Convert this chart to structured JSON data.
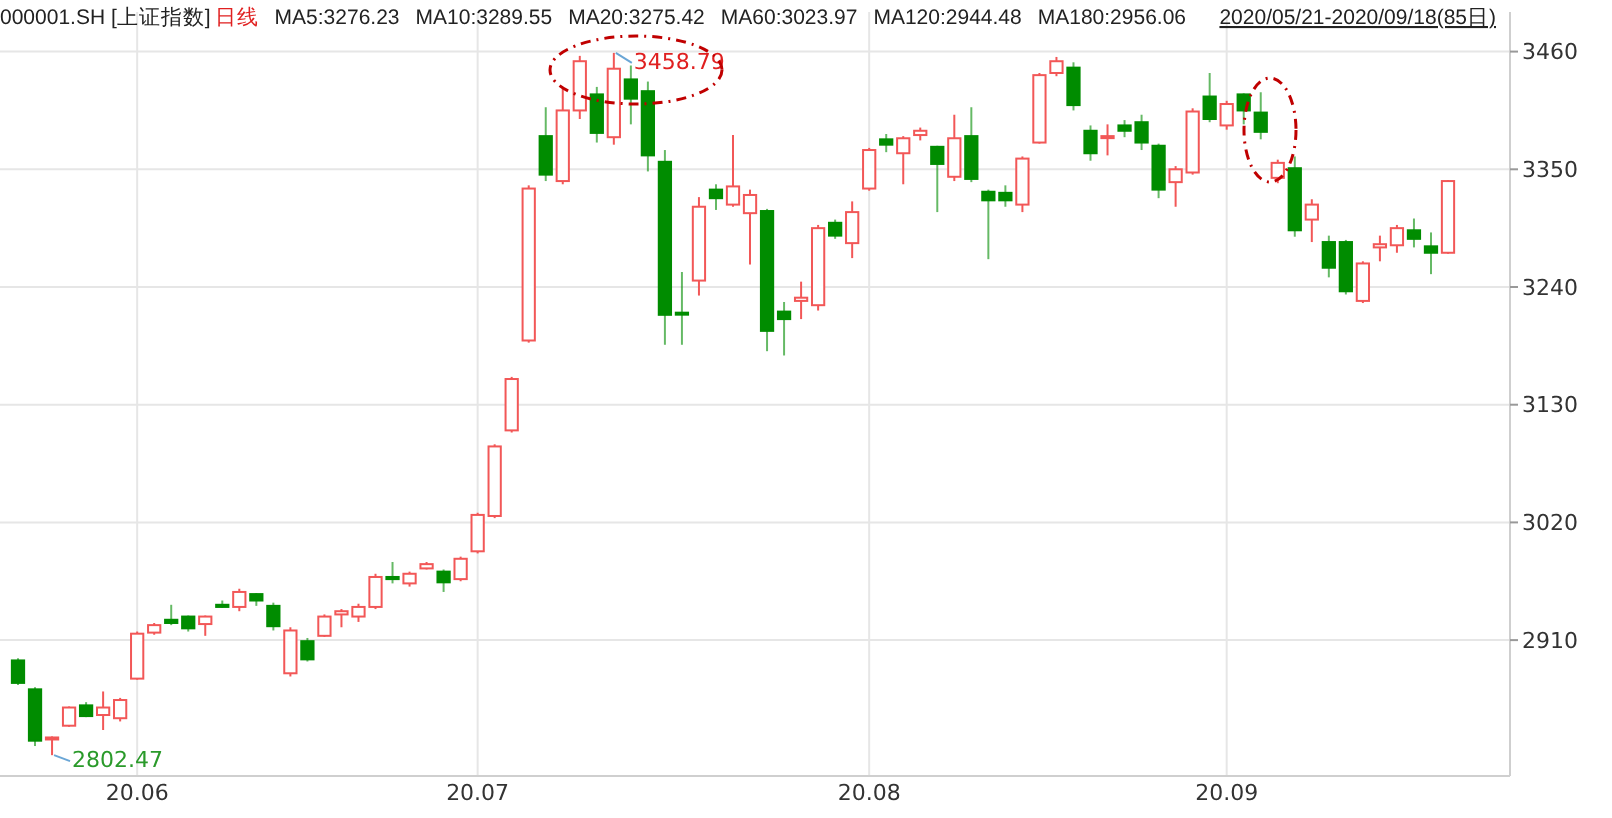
{
  "chart_data": {
    "type": "candlestick",
    "title": "000001.SH [上证指数]",
    "annotations": [
      "日线",
      "MA5:3276.23",
      "MA10:3289.55",
      "MA20:3275.42",
      "MA60:3023.97",
      "MA120:2944.48",
      "MA180:2956.06",
      "2020/05/21-2020/09/18(85日)",
      "3458.79",
      "2802.47"
    ],
    "categories": [
      null,
      null,
      null,
      null,
      null,
      null,
      null,
      "20.06",
      null,
      null,
      null,
      null,
      null,
      null,
      null,
      null,
      null,
      null,
      null,
      null,
      null,
      null,
      null,
      null,
      null,
      null,
      null,
      "20.07",
      null,
      null,
      null,
      null,
      null,
      null,
      null,
      null,
      null,
      null,
      null,
      null,
      null,
      null,
      null,
      null,
      null,
      null,
      null,
      null,
      null,
      null,
      "20.08",
      null,
      null,
      null,
      null,
      null,
      null,
      null,
      null,
      null,
      null,
      null,
      null,
      null,
      null,
      null,
      null,
      null,
      null,
      null,
      null,
      "20.09",
      null,
      null,
      null,
      null,
      null,
      null,
      null,
      null,
      null,
      null,
      null,
      null,
      null
    ],
    "ohlc": [
      [
        2891,
        2893,
        2868,
        2870
      ],
      [
        2864,
        2866,
        2811,
        2816
      ],
      [
        2818,
        2820,
        2802.47,
        2819
      ],
      [
        2830,
        2848,
        2829,
        2847
      ],
      [
        2849,
        2852,
        2838,
        2839
      ],
      [
        2840,
        2862,
        2826,
        2847
      ],
      [
        2837,
        2856,
        2834,
        2854
      ],
      [
        2874,
        2918,
        2873,
        2916
      ],
      [
        2917,
        2926,
        2915,
        2924
      ],
      [
        2929,
        2943,
        2924,
        2926
      ],
      [
        2932,
        2933,
        2918,
        2921
      ],
      [
        2925,
        2933,
        2914,
        2932
      ],
      [
        2943,
        2947,
        2940,
        2941
      ],
      [
        2941,
        2958,
        2937,
        2955
      ],
      [
        2953,
        2954,
        2942,
        2947
      ],
      [
        2942,
        2945,
        2919,
        2923
      ],
      [
        2879,
        2922,
        2876,
        2919
      ],
      [
        2909,
        2912,
        2890,
        2892
      ],
      [
        2914,
        2934,
        2913,
        2932
      ],
      [
        2934,
        2939,
        2922,
        2937
      ],
      [
        2932,
        2944,
        2927,
        2941
      ],
      [
        2941,
        2972,
        2939,
        2969
      ],
      [
        2969,
        2983,
        2963,
        2967
      ],
      [
        2963,
        2974,
        2960,
        2972
      ],
      [
        2977,
        2983,
        2976,
        2981
      ],
      [
        2974,
        2976,
        2955,
        2964
      ],
      [
        2967,
        2988,
        2965,
        2986
      ],
      [
        2993,
        3029,
        2991,
        3027
      ],
      [
        3026,
        3093,
        3024,
        3091
      ],
      [
        3106,
        3156,
        3104,
        3154
      ],
      [
        3190,
        3335,
        3188,
        3332
      ],
      [
        3381,
        3408,
        3339,
        3345
      ],
      [
        3339,
        3427,
        3336,
        3405
      ],
      [
        3405,
        3456,
        3397,
        3451
      ],
      [
        3420,
        3427,
        3375,
        3384
      ],
      [
        3380,
        3458.79,
        3373,
        3444
      ],
      [
        3434,
        3447,
        3392,
        3416
      ],
      [
        3423,
        3432,
        3348,
        3363
      ],
      [
        3357,
        3368,
        3186,
        3214
      ],
      [
        3216,
        3254,
        3186,
        3215
      ],
      [
        3246,
        3324,
        3232,
        3315
      ],
      [
        3331,
        3336,
        3312,
        3323
      ],
      [
        3317,
        3382,
        3315,
        3334
      ],
      [
        3309,
        3331,
        3261,
        3326
      ],
      [
        3311,
        3313,
        3180,
        3199
      ],
      [
        3217,
        3226,
        3176,
        3210
      ],
      [
        3227,
        3245,
        3210,
        3230
      ],
      [
        3223,
        3298,
        3218,
        3295
      ],
      [
        3300,
        3303,
        3285,
        3288
      ],
      [
        3281,
        3320,
        3267,
        3310
      ],
      [
        3332,
        3370,
        3330,
        3368
      ],
      [
        3378,
        3383,
        3366,
        3373
      ],
      [
        3365,
        3381,
        3336,
        3379
      ],
      [
        3382,
        3389,
        3377,
        3386
      ],
      [
        3371,
        3372,
        3310,
        3355
      ],
      [
        3343,
        3401,
        3339,
        3379
      ],
      [
        3381,
        3408,
        3338,
        3341
      ],
      [
        3329,
        3331,
        3266,
        3321
      ],
      [
        3328,
        3335,
        3315,
        3321
      ],
      [
        3317,
        3362,
        3310,
        3360
      ],
      [
        3375,
        3440,
        3374,
        3438
      ],
      [
        3440,
        3455,
        3437,
        3451
      ],
      [
        3445,
        3450,
        3405,
        3410
      ],
      [
        3386,
        3391,
        3358,
        3365
      ],
      [
        3380,
        3392,
        3363,
        3381
      ],
      [
        3391,
        3396,
        3380,
        3386
      ],
      [
        3394,
        3401,
        3368,
        3375
      ],
      [
        3372,
        3374,
        3323,
        3331
      ],
      [
        3338,
        3353,
        3315,
        3350
      ],
      [
        3347,
        3407,
        3345,
        3404
      ],
      [
        3418,
        3440,
        3394,
        3397
      ],
      [
        3391,
        3414,
        3387,
        3411
      ],
      [
        3420,
        3421,
        3392,
        3405
      ],
      [
        3403,
        3422,
        3378,
        3385
      ],
      [
        3342,
        3359,
        3337,
        3356
      ],
      [
        3351,
        3362,
        3287,
        3293
      ],
      [
        3303,
        3322,
        3282,
        3317
      ],
      [
        3282,
        3288,
        3249,
        3258
      ],
      [
        3282,
        3284,
        3233,
        3236
      ],
      [
        3227,
        3264,
        3225,
        3262
      ],
      [
        3277,
        3288,
        3264,
        3280
      ],
      [
        3279,
        3298,
        3272,
        3295
      ],
      [
        3293,
        3304,
        3277,
        3285
      ],
      [
        3278,
        3291,
        3252,
        3272
      ],
      [
        3272,
        3340,
        3271,
        3339
      ]
    ],
    "ylim": [
      2783,
      3497
    ],
    "yticks": [
      2910,
      3020,
      3130,
      3240,
      3350,
      3460
    ],
    "grid": true
  }
}
